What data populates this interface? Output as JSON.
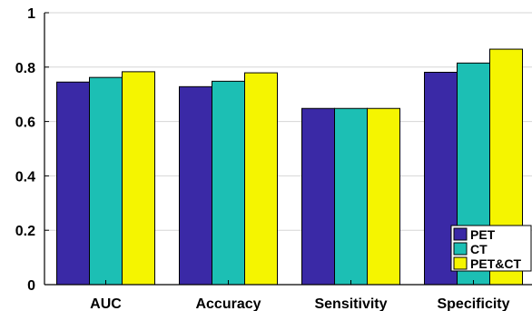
{
  "chart_data": {
    "type": "bar",
    "title": "",
    "xlabel": "",
    "ylabel": "",
    "categories": [
      "AUC",
      "Accuracy",
      "Sensitivity",
      "Specificity"
    ],
    "series": [
      {
        "name": "PET",
        "color": "#3a29a6",
        "values": [
          0.745,
          0.728,
          0.648,
          0.781
        ]
      },
      {
        "name": "CT",
        "color": "#1cbfb4",
        "values": [
          0.762,
          0.748,
          0.648,
          0.815
        ]
      },
      {
        "name": "PET&CT",
        "color": "#f5f500",
        "values": [
          0.783,
          0.779,
          0.648,
          0.866
        ]
      }
    ],
    "ylim": [
      0,
      1
    ],
    "yticks": [
      0,
      0.2,
      0.4,
      0.6,
      0.8,
      1
    ],
    "ytick_labels": [
      "0",
      "0.2",
      "0.4",
      "0.6",
      "0.8",
      "1"
    ],
    "grid": true,
    "legend_position": "bottom-right"
  }
}
